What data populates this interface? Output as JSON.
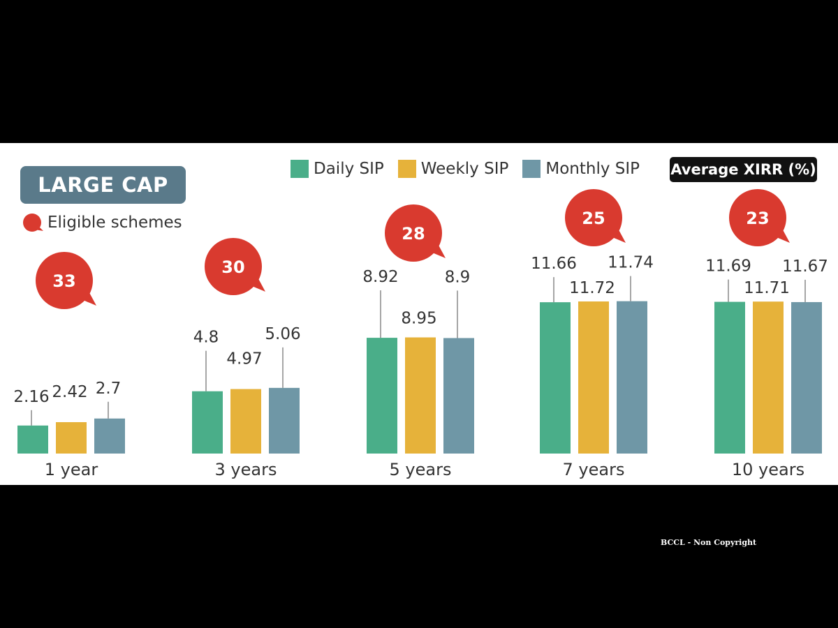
{
  "header": {
    "segment_label": "LARGE CAP",
    "eligible_legend_label": "Eligible schemes",
    "metric_label": "Average XIRR (%)"
  },
  "colors": {
    "daily": "#4aae89",
    "weekly": "#e6b23a",
    "monthly": "#6f97a6",
    "bubble": "#d93a2f",
    "badge": "#5a7a8a"
  },
  "watermark": "BCCL - Non Copyright",
  "chart_data": {
    "type": "bar",
    "categories": [
      "1 year",
      "3 years",
      "5 years",
      "7 years",
      "10 years"
    ],
    "series": [
      {
        "name": "Daily SIP",
        "values": [
          2.16,
          4.8,
          8.92,
          11.66,
          11.69
        ]
      },
      {
        "name": "Weekly SIP",
        "values": [
          2.42,
          4.97,
          8.95,
          11.72,
          11.71
        ]
      },
      {
        "name": "Monthly SIP",
        "values": [
          2.7,
          5.06,
          8.9,
          11.74,
          11.67
        ]
      }
    ],
    "eligible_schemes": [
      33,
      30,
      28,
      25,
      23
    ],
    "ylabel": "Average XIRR (%)",
    "legend": "top"
  }
}
